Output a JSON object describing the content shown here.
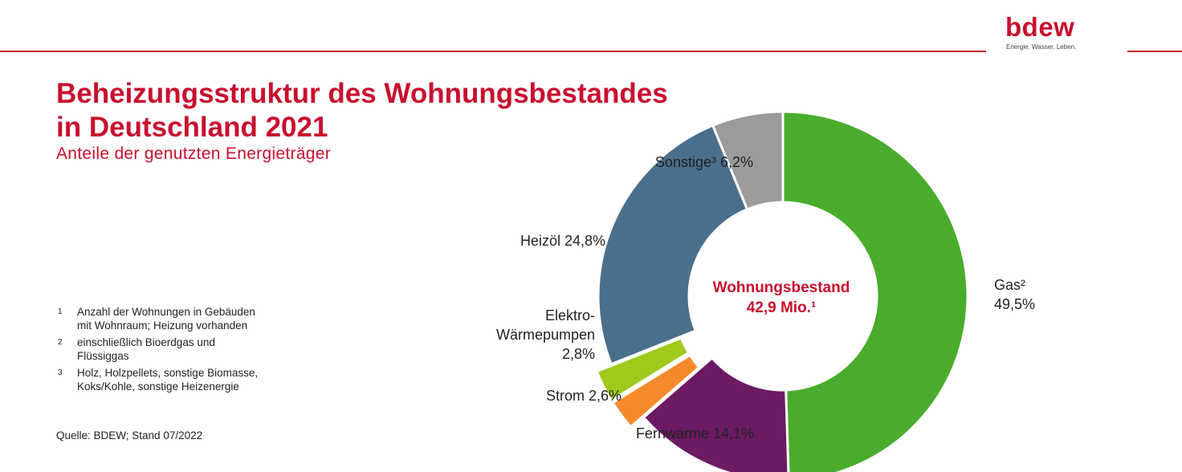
{
  "logo": {
    "word": "bdew",
    "tagline": "Energie. Wasser. Leben."
  },
  "title": [
    "Beheizungsstruktur des Wohnungsbestandes",
    "in Deutschland 2021"
  ],
  "subtitle": "Anteile der genutzten Energieträger",
  "footnotes": [
    {
      "num": "1",
      "text": "Anzahl der Wohnungen in Gebäuden\nmit Wohnraum; Heizung vorhanden"
    },
    {
      "num": "2",
      "text": "einschließlich Bioerdgas und\nFlüssiggas"
    },
    {
      "num": "3",
      "text": "Holz, Holzpellets, sonstige Biomasse,\nKoks/Kohle, sonstige Heizenergie"
    }
  ],
  "source": "Quelle:  BDEW; Stand 07/2022",
  "colors": {
    "brand": "#c8102e"
  },
  "chart_data": {
    "type": "pie",
    "style": "donut",
    "center_label": [
      "Wohnungsbestand",
      "42,9 Mio.¹"
    ],
    "slices": [
      {
        "name": "Gas²",
        "value": 49.5,
        "value_label": "49,5%",
        "color": "#4aac2c"
      },
      {
        "name": "Fernwärme",
        "value": 14.1,
        "value_label": "14,1%",
        "color": "#6b1a63"
      },
      {
        "name": "Strom",
        "value": 2.6,
        "value_label": "2,6%",
        "color": "#f58a2a",
        "exploded": true
      },
      {
        "name": "Elektro-Wärmepumpen",
        "value": 2.8,
        "value_label": "2,8%",
        "color": "#9ec91d",
        "exploded": true
      },
      {
        "name": "Heizöl",
        "value": 24.8,
        "value_label": "24,8%",
        "color": "#4a6f8c"
      },
      {
        "name": "Sonstige³",
        "value": 6.2,
        "value_label": "6,2%",
        "color": "#9b9b9b"
      }
    ],
    "labels": [
      [
        "Gas²",
        "49,5%"
      ],
      [
        "Fernwärme 14,1%"
      ],
      [
        "Strom 2,6%"
      ],
      [
        "Elektro-",
        "Wärmepumpen",
        "2,8%"
      ],
      [
        "Heizöl 24,8%"
      ],
      [
        "Sonstige³ 6,2%"
      ]
    ]
  }
}
